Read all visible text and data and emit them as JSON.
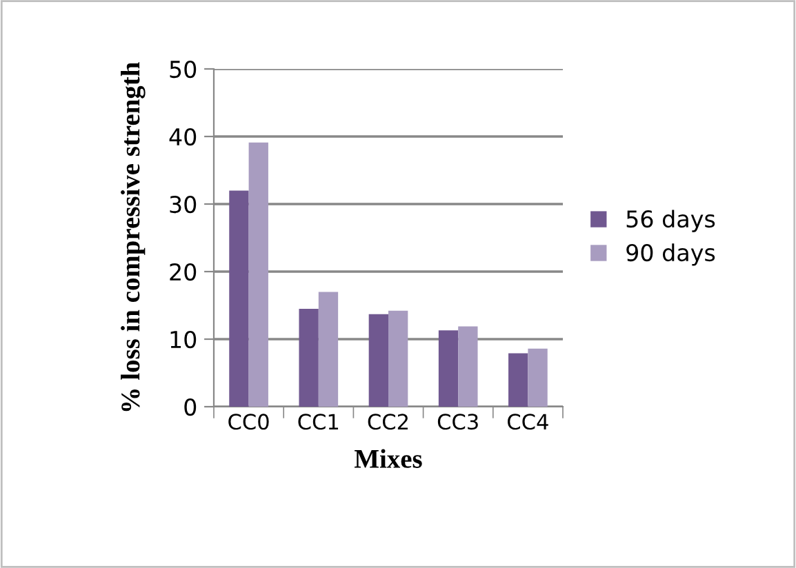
{
  "chart_data": {
    "type": "bar",
    "xlabel": "Mixes",
    "ylabel": "% loss in compressive strength",
    "categories": [
      "CC0",
      "CC1",
      "CC2",
      "CC3",
      "CC4"
    ],
    "series": [
      {
        "name": "56 days",
        "color": "#705890",
        "values": [
          32.0,
          14.5,
          13.7,
          11.3,
          7.9
        ]
      },
      {
        "name": "90 days",
        "color": "#a89cc0",
        "values": [
          39.1,
          17.0,
          14.2,
          11.9,
          8.6
        ]
      }
    ],
    "ylim": [
      0,
      50
    ],
    "yticks": [
      0,
      10,
      20,
      30,
      40,
      50
    ],
    "grid": "y",
    "legend": "right"
  }
}
